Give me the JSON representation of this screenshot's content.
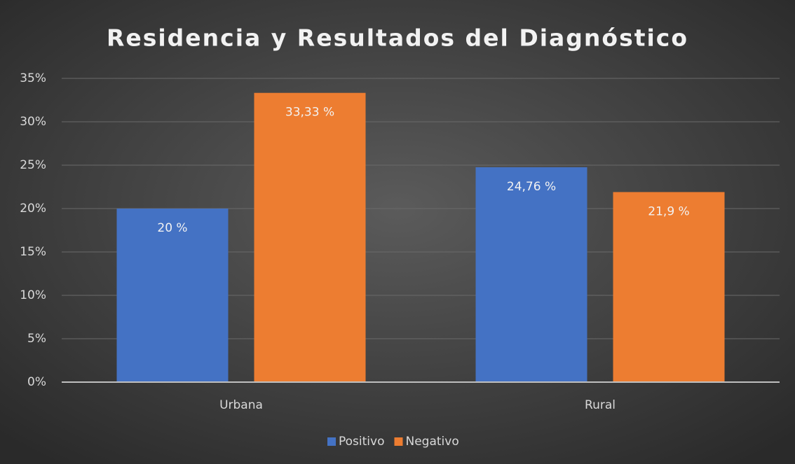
{
  "chart_data": {
    "type": "bar",
    "title": "Residencia y Resultados del Diagnóstico",
    "categories": [
      "Urbana",
      "Rural"
    ],
    "series": [
      {
        "name": "Positivo",
        "color": "#4472c4",
        "values": [
          20,
          24.76
        ],
        "value_labels": [
          "20 %",
          "24,76 %"
        ]
      },
      {
        "name": "Negativo",
        "color": "#ed7d31",
        "values": [
          33.33,
          21.9
        ],
        "value_labels": [
          "33,33 %",
          "21,9 %"
        ]
      }
    ],
    "ylim": [
      0,
      35
    ],
    "yticks": [
      {
        "value": 0,
        "label": "0%"
      },
      {
        "value": 5,
        "label": "5%"
      },
      {
        "value": 10,
        "label": "10%"
      },
      {
        "value": 15,
        "label": "15%"
      },
      {
        "value": 20,
        "label": "20%"
      },
      {
        "value": 25,
        "label": "25%"
      },
      {
        "value": 30,
        "label": "30%"
      },
      {
        "value": 35,
        "label": "35%"
      }
    ],
    "grid": true,
    "legend": "bottom"
  }
}
